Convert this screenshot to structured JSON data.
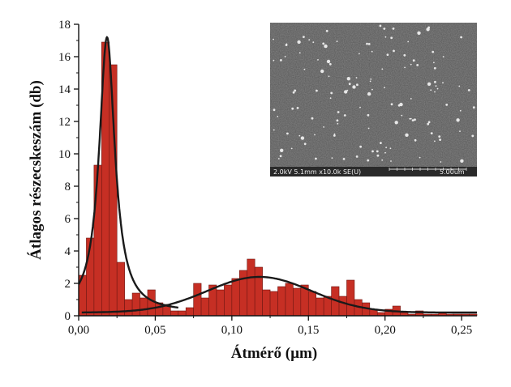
{
  "chart_data": {
    "type": "bar",
    "xlabel": "Átmérő (µm)",
    "ylabel": "Átlagos részecskeszám (db)",
    "xlim": [
      0.0,
      0.26
    ],
    "ylim": [
      0,
      18
    ],
    "grid": false,
    "bin_width": 0.005,
    "xticks": [
      {
        "value": 0.0,
        "label": "0,00"
      },
      {
        "value": 0.05,
        "label": "0,05"
      },
      {
        "value": 0.1,
        "label": "0,10"
      },
      {
        "value": 0.15,
        "label": "0,15"
      },
      {
        "value": 0.2,
        "label": "0,20"
      },
      {
        "value": 0.25,
        "label": "0,25"
      }
    ],
    "yticks": [
      {
        "value": 0,
        "label": "0"
      },
      {
        "value": 2,
        "label": "2"
      },
      {
        "value": 4,
        "label": "4"
      },
      {
        "value": 6,
        "label": "6"
      },
      {
        "value": 8,
        "label": "8"
      },
      {
        "value": 10,
        "label": "10"
      },
      {
        "value": 12,
        "label": "12"
      },
      {
        "value": 14,
        "label": "14"
      },
      {
        "value": 16,
        "label": "16"
      },
      {
        "value": 18,
        "label": "18"
      }
    ],
    "bin_centers": [
      0.0025,
      0.0075,
      0.0125,
      0.0175,
      0.0225,
      0.0275,
      0.0325,
      0.0375,
      0.0425,
      0.0475,
      0.0525,
      0.0575,
      0.0625,
      0.0675,
      0.0725,
      0.0775,
      0.0825,
      0.0875,
      0.0925,
      0.0975,
      0.1025,
      0.1075,
      0.1125,
      0.1175,
      0.1225,
      0.1275,
      0.1325,
      0.1375,
      0.1425,
      0.1475,
      0.1525,
      0.1575,
      0.1625,
      0.1675,
      0.1725,
      0.1775,
      0.1825,
      0.1875,
      0.1925,
      0.1975,
      0.2025,
      0.2075,
      0.2125,
      0.2175,
      0.2225,
      0.2275,
      0.2325,
      0.2375,
      0.2425,
      0.2475,
      0.2525,
      0.2575
    ],
    "values": [
      2.5,
      4.8,
      9.3,
      16.9,
      15.5,
      3.3,
      1.0,
      1.4,
      1.1,
      1.6,
      0.8,
      0.7,
      0.3,
      0.3,
      0.5,
      2.0,
      1.1,
      1.9,
      1.6,
      1.9,
      2.3,
      2.8,
      3.5,
      3.0,
      1.6,
      1.5,
      1.8,
      2.0,
      1.7,
      1.9,
      1.5,
      1.1,
      1.2,
      1.8,
      1.2,
      2.2,
      1.0,
      0.8,
      0.4,
      0.2,
      0.4,
      0.6,
      0.2,
      0.1,
      0.3,
      0.1,
      0.1,
      0.2,
      0.1,
      0.1,
      0.1,
      0.1
    ],
    "fit_curves": [
      {
        "type": "lorentz",
        "center": 0.0185,
        "width": 0.0125,
        "amplitude": 17.0,
        "offset": 0.2,
        "x_range": [
          0.0,
          0.065
        ]
      },
      {
        "type": "gauss",
        "center": 0.118,
        "sigma": 0.034,
        "amplitude": 2.2,
        "offset": 0.2,
        "x_range": [
          0.002,
          0.26
        ]
      }
    ],
    "colors": {
      "bar_fill": "#c62f24",
      "bar_edge": "#6e1712",
      "fit_line": "#1a1a1a",
      "axis": "#111111"
    }
  },
  "inset": {
    "scale_text": "2.0kV 5.1mm x10.0k SE(U)",
    "scalebar_label": "5.00um"
  }
}
